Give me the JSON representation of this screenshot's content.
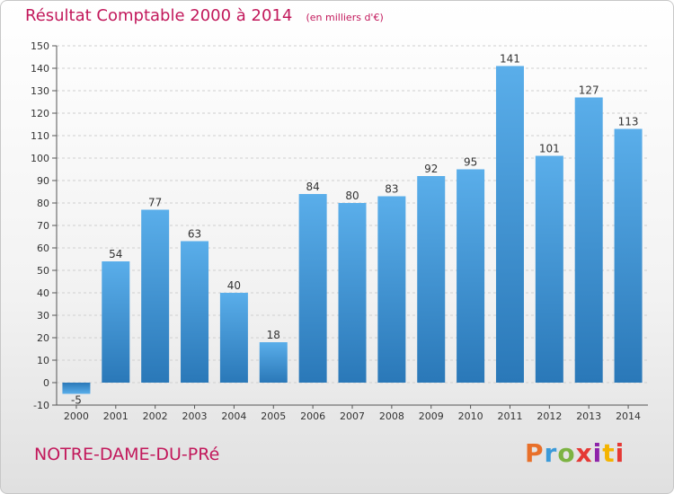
{
  "chart_data": {
    "type": "bar",
    "title": "Résultat Comptable 2000 à 2014",
    "unit_note": "(en milliers d'€)",
    "xlabel": "",
    "ylabel": "",
    "categories": [
      "2000",
      "2001",
      "2002",
      "2003",
      "2004",
      "2005",
      "2006",
      "2007",
      "2008",
      "2009",
      "2010",
      "2011",
      "2012",
      "2013",
      "2014"
    ],
    "values": [
      -5,
      54,
      77,
      63,
      40,
      18,
      84,
      80,
      83,
      92,
      95,
      141,
      101,
      127,
      113
    ],
    "ylim": [
      -10,
      150
    ],
    "yticks": [
      -10,
      0,
      10,
      20,
      30,
      40,
      50,
      60,
      70,
      80,
      90,
      100,
      110,
      120,
      130,
      140,
      150
    ],
    "grid": "horizontal dashed",
    "legend": "none",
    "bar_color": "#4fa3e3",
    "bar_color_dark": "#2a78b8"
  },
  "footer": {
    "commune": "NOTRE-DAME-DU-PRé",
    "brand": "Proxiti",
    "brand_colors": [
      "#e8702a",
      "#3a9ad9",
      "#7cb342",
      "#e53935",
      "#8e24aa",
      "#f4b400",
      "#e53935"
    ]
  }
}
